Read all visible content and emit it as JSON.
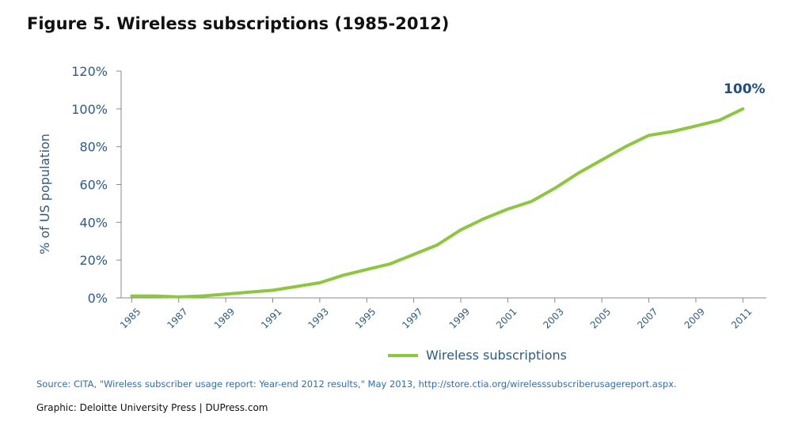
{
  "figure_title": "Figure 5. Wireless subscriptions (1985-2012)",
  "colors": {
    "series": "#8dc63f",
    "axis_text": "#2f5a86",
    "end_label": "#1d4f82",
    "source": "#2f6fb0"
  },
  "chart_data": {
    "type": "line",
    "title": "Figure 5. Wireless subscriptions (1985-2012)",
    "xlabel": "",
    "ylabel": "% of US population",
    "x_tick_labels": [
      "1985",
      "1987",
      "1989",
      "1991",
      "1993",
      "1995",
      "1997",
      "1999",
      "2001",
      "2003",
      "2005",
      "2007",
      "2009",
      "2011"
    ],
    "y_tick_labels": [
      "0%",
      "20%",
      "40%",
      "60%",
      "80%",
      "100%",
      "120%"
    ],
    "ylim": [
      0,
      120
    ],
    "grid": false,
    "legend_position": "bottom",
    "series": [
      {
        "name": "Wireless subscriptions",
        "x": [
          1985,
          1986,
          1987,
          1988,
          1989,
          1990,
          1991,
          1992,
          1993,
          1994,
          1995,
          1996,
          1997,
          1998,
          1999,
          2000,
          2001,
          2002,
          2003,
          2004,
          2005,
          2006,
          2007,
          2008,
          2009,
          2010,
          2011
        ],
        "values": [
          1,
          1,
          0.5,
          1,
          2,
          3,
          4,
          6,
          8,
          12,
          15,
          18,
          23,
          28,
          36,
          42,
          47,
          51,
          58,
          66,
          73,
          80,
          86,
          88,
          91,
          94,
          100
        ]
      }
    ],
    "annotations": [
      {
        "x": 2011,
        "text": "100%"
      }
    ]
  },
  "source_text": "Source: CITA, \"Wireless subscriber usage report: Year-end 2012 results,\" May 2013, http://store.ctia.org/wirelesssubscriberusagereport.aspx.",
  "credit_text": "Graphic: Deloitte University Press  |  DUPress.com"
}
